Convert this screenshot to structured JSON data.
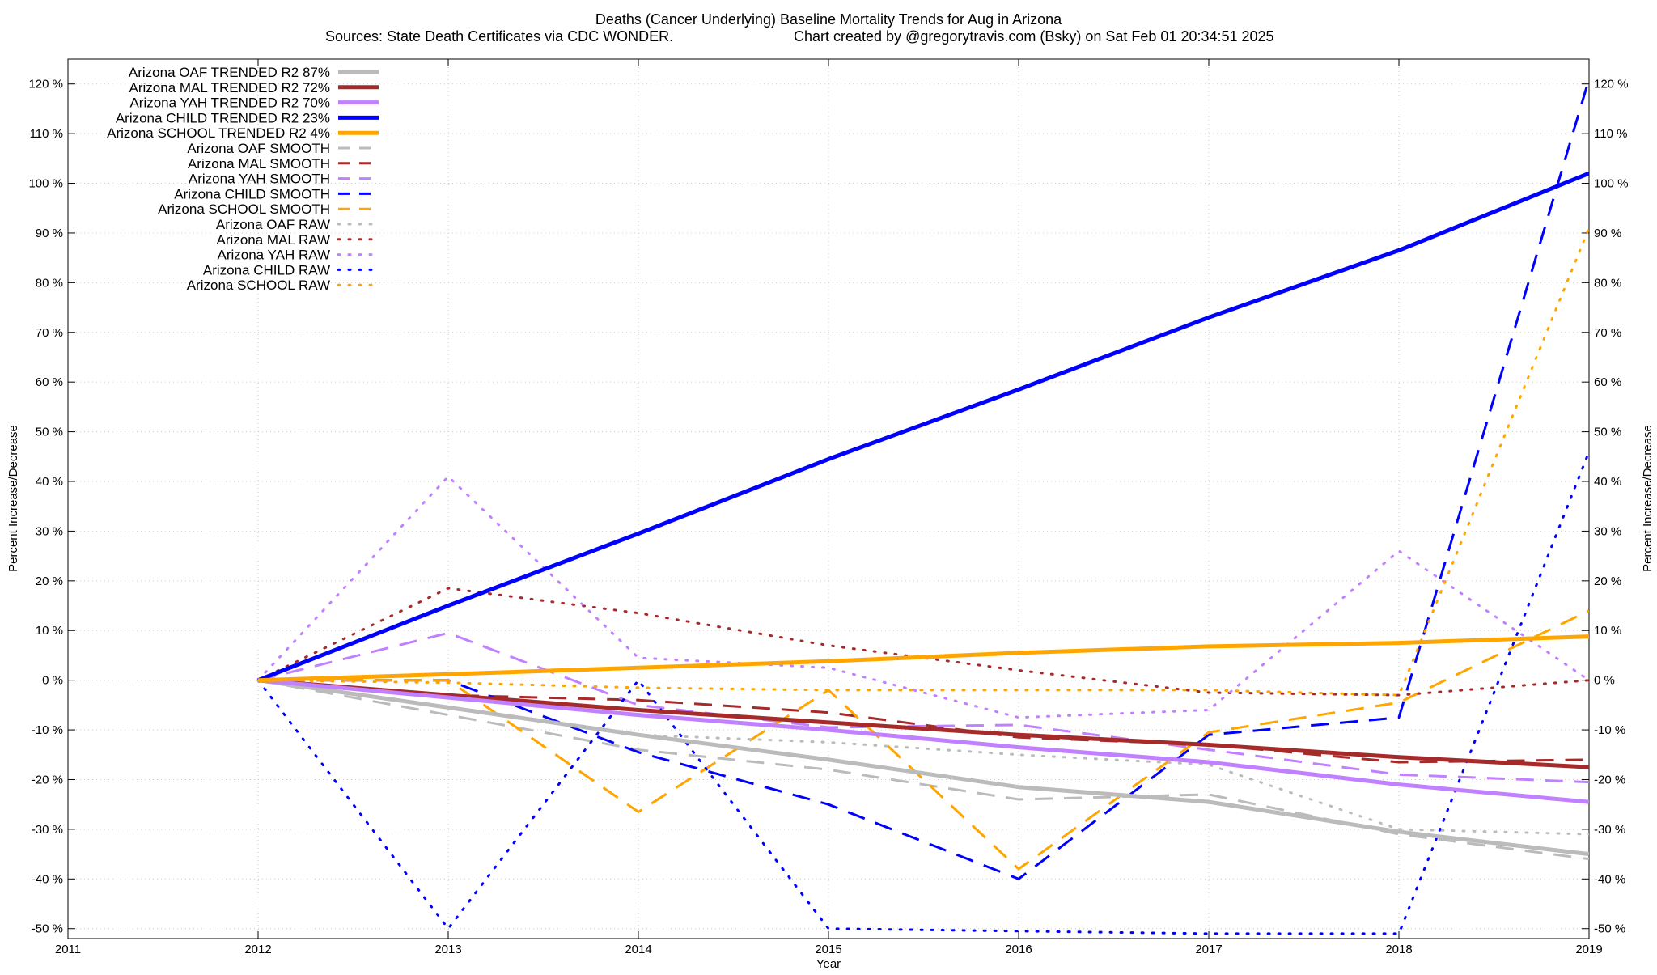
{
  "chart_data": {
    "type": "line",
    "title": "Deaths (Cancer Underlying)  Baseline Mortality Trends for Aug in Arizona",
    "subtitle_left": "Sources: State Death Certificates via CDC WONDER.",
    "subtitle_right": "Chart created by @gregorytravis.com (Bsky) on Sat Feb 01 20:34:51 2025",
    "xlabel": "Year",
    "ylabel": "Percent Increase/Decrease",
    "y2label": "Percent Increase/Decrease",
    "xlim": [
      2011,
      2019
    ],
    "ylim": [
      -52,
      125
    ],
    "x_ticks": [
      "2011",
      "2012",
      "2013",
      "2014",
      "2015",
      "2016",
      "2017",
      "2018",
      "2019"
    ],
    "y_ticks": [
      "120 %",
      "110 %",
      "100 %",
      "90 %",
      "80 %",
      "70 %",
      "60 %",
      "50 %",
      "40 %",
      "30 %",
      "20 %",
      "10 %",
      "0 %",
      "-10 %",
      "-20 %",
      "-30 %",
      "-40 %",
      "-50 %"
    ],
    "y_tick_values": [
      120,
      110,
      100,
      90,
      80,
      70,
      60,
      50,
      40,
      30,
      20,
      10,
      0,
      -10,
      -20,
      -30,
      -40,
      -50
    ],
    "grid": true,
    "legend_position": "top-left",
    "series": [
      {
        "name": "Arizona OAF TRENDED R2  87%",
        "style": "solid",
        "color": "#bbbbbb",
        "x": [
          2012,
          2013,
          2014,
          2015,
          2016,
          2017,
          2018,
          2019
        ],
        "values": [
          0,
          -5.5,
          -11,
          -16,
          -21.5,
          -24.5,
          -30.5,
          -35
        ]
      },
      {
        "name": "Arizona MAL TRENDED R2  72%",
        "style": "solid",
        "color": "#a52a2a",
        "x": [
          2012,
          2013,
          2014,
          2015,
          2016,
          2017,
          2018,
          2019
        ],
        "values": [
          0,
          -3,
          -6,
          -8.5,
          -11,
          -13,
          -15.5,
          -17.5
        ]
      },
      {
        "name": "Arizona YAH TRENDED R2  70%",
        "style": "solid",
        "color": "#c080ff",
        "x": [
          2012,
          2013,
          2014,
          2015,
          2016,
          2017,
          2018,
          2019
        ],
        "values": [
          0,
          -3.5,
          -7,
          -10,
          -13.5,
          -16.5,
          -21,
          -24.5
        ]
      },
      {
        "name": "Arizona CHILD TRENDED R2  23%",
        "style": "solid",
        "color": "#0000ff",
        "x": [
          2012,
          2013,
          2014,
          2015,
          2016,
          2017,
          2018,
          2019
        ],
        "values": [
          0,
          15,
          29.5,
          44.5,
          58.5,
          73,
          86.5,
          102
        ]
      },
      {
        "name": "Arizona SCHOOL TRENDED R2   4%",
        "style": "solid",
        "color": "#ffa500",
        "x": [
          2012,
          2013,
          2014,
          2015,
          2016,
          2017,
          2018,
          2019
        ],
        "values": [
          0,
          1.2,
          2.5,
          3.8,
          5.5,
          6.8,
          7.5,
          8.8
        ]
      },
      {
        "name": "Arizona OAF SMOOTH",
        "style": "dashed",
        "color": "#bbbbbb",
        "x": [
          2012,
          2013,
          2014,
          2015,
          2016,
          2017,
          2018,
          2019
        ],
        "values": [
          0,
          -7,
          -14,
          -18,
          -24,
          -23,
          -31,
          -36
        ]
      },
      {
        "name": "Arizona MAL SMOOTH",
        "style": "dashed",
        "color": "#a52a2a",
        "x": [
          2012,
          2013,
          2014,
          2015,
          2016,
          2017,
          2018,
          2019
        ],
        "values": [
          0,
          -3,
          -4,
          -6.5,
          -11.5,
          -13,
          -16.5,
          -16
        ]
      },
      {
        "name": "Arizona YAH SMOOTH",
        "style": "dashed",
        "color": "#c080ff",
        "x": [
          2012,
          2013,
          2014,
          2015,
          2016,
          2017,
          2018,
          2019
        ],
        "values": [
          0,
          9.5,
          -5,
          -9.5,
          -9,
          -14,
          -19,
          -20.5
        ]
      },
      {
        "name": "Arizona CHILD SMOOTH",
        "style": "dashed",
        "color": "#0000ff",
        "x": [
          2012,
          2013,
          2014,
          2015,
          2016,
          2017,
          2018,
          2019
        ],
        "values": [
          0,
          0,
          -14.5,
          -25,
          -40,
          -11,
          -7.5,
          121
        ]
      },
      {
        "name": "Arizona SCHOOL SMOOTH",
        "style": "dashed",
        "color": "#ffa500",
        "x": [
          2012,
          2013,
          2014,
          2015,
          2016,
          2017,
          2018,
          2019
        ],
        "values": [
          0,
          0,
          -26.5,
          -2,
          -38,
          -10.5,
          -4.5,
          14
        ]
      },
      {
        "name": "Arizona OAF RAW",
        "style": "dotted",
        "color": "#bbbbbb",
        "x": [
          2012,
          2013,
          2014,
          2015,
          2016,
          2017,
          2018,
          2019
        ],
        "values": [
          0,
          -5.5,
          -11,
          -12.5,
          -15,
          -17,
          -30,
          -31
        ]
      },
      {
        "name": "Arizona MAL RAW",
        "style": "dotted",
        "color": "#a52a2a",
        "x": [
          2012,
          2013,
          2014,
          2015,
          2016,
          2017,
          2018,
          2019
        ],
        "values": [
          0,
          18.5,
          13.5,
          7,
          2,
          -2.5,
          -3,
          0
        ]
      },
      {
        "name": "Arizona YAH RAW",
        "style": "dotted",
        "color": "#c080ff",
        "x": [
          2012,
          2013,
          2014,
          2015,
          2016,
          2017,
          2018,
          2019
        ],
        "values": [
          0,
          41,
          4.5,
          2.5,
          -7.5,
          -6,
          26,
          0
        ]
      },
      {
        "name": "Arizona CHILD RAW",
        "style": "dotted",
        "color": "#0000ff",
        "x": [
          2012,
          2013,
          2014,
          2015,
          2016,
          2017,
          2018,
          2019
        ],
        "values": [
          0,
          -50,
          0,
          -50,
          -50.5,
          -51,
          -51,
          46
        ]
      },
      {
        "name": "Arizona SCHOOL RAW",
        "style": "dotted",
        "color": "#ffa500",
        "x": [
          2012,
          2013,
          2014,
          2015,
          2016,
          2017,
          2018,
          2019
        ],
        "values": [
          0,
          -0.5,
          -1.5,
          -2,
          -2,
          -2,
          -3,
          91
        ]
      }
    ]
  }
}
